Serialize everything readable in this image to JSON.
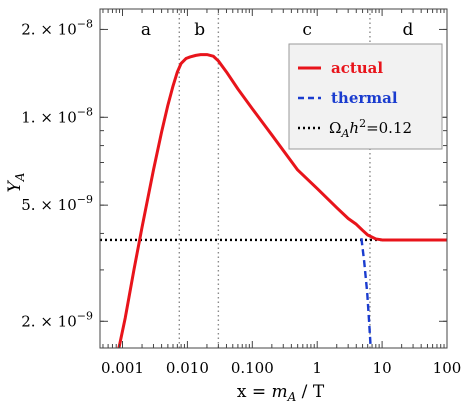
{
  "chart_data": {
    "type": "line",
    "title": "",
    "xlabel": "x = m_A / T",
    "ylabel": "Y_A",
    "x_scale": "log",
    "y_scale": "log",
    "xlim": [
      0.00045,
      100
    ],
    "ylim": [
      1.62e-09,
      2.35e-08
    ],
    "x_ticks": [
      {
        "value": 0.001,
        "label": "0.001"
      },
      {
        "value": 0.01,
        "label": "0.010"
      },
      {
        "value": 0.1,
        "label": "0.100"
      },
      {
        "value": 1,
        "label": "1"
      },
      {
        "value": 10,
        "label": "10"
      },
      {
        "value": 100,
        "label": "100"
      }
    ],
    "y_ticks": [
      {
        "value": 2e-09,
        "mantissa": "2.",
        "exponent": "−9"
      },
      {
        "value": 5e-09,
        "mantissa": "5.",
        "exponent": "−9"
      },
      {
        "value": 1e-08,
        "mantissa": "1.",
        "exponent": "−8"
      },
      {
        "value": 2e-08,
        "mantissa": "2.",
        "exponent": "−8"
      }
    ],
    "region_boundaries": [
      0.0075,
      0.03,
      6.5
    ],
    "regions": [
      {
        "label": "a",
        "x": 0.0023
      },
      {
        "label": "b",
        "x": 0.0155
      },
      {
        "label": "c",
        "x": 0.7
      },
      {
        "label": "d",
        "x": 25
      }
    ],
    "grid": false,
    "legend_position": "top-right",
    "series": [
      {
        "name": "actual",
        "color": "#e8141b",
        "style": "solid",
        "x": [
          0.00087,
          0.0011,
          0.0015,
          0.002,
          0.003,
          0.004,
          0.005,
          0.006,
          0.007,
          0.008,
          0.0095,
          0.011,
          0.0135,
          0.016,
          0.02,
          0.025,
          0.03,
          0.04,
          0.06,
          0.1,
          0.2,
          0.5,
          1,
          2,
          3,
          4,
          5,
          6,
          8,
          10,
          30,
          100
        ],
        "y": [
          1.6e-09,
          2.05e-09,
          3e-09,
          4.2e-09,
          6.6e-09,
          8.9e-09,
          1.1e-08,
          1.28e-08,
          1.43e-08,
          1.53e-08,
          1.59e-08,
          1.61e-08,
          1.63e-08,
          1.64e-08,
          1.64e-08,
          1.62e-08,
          1.56e-08,
          1.43e-08,
          1.25e-08,
          1.07e-08,
          8.7e-09,
          6.6e-09,
          5.7e-09,
          4.9e-09,
          4.5e-09,
          4.3e-09,
          4.1e-09,
          3.95e-09,
          3.83e-09,
          3.8e-09,
          3.8e-09,
          3.8e-09
        ]
      },
      {
        "name": "thermal",
        "color": "#1a3ccf",
        "style": "dashed",
        "x": [
          4.8,
          5.3,
          5.9,
          6.3,
          6.7
        ],
        "y": [
          3.85e-09,
          3.2e-09,
          2.5e-09,
          2e-09,
          1.6e-09
        ]
      },
      {
        "name": "Ω_A h²=0.12",
        "color": "#000000",
        "style": "dotted",
        "x": [
          0.00045,
          100
        ],
        "y": [
          3.8e-09,
          3.8e-09
        ]
      }
    ],
    "legend": [
      {
        "label": "actual",
        "color": "#e8141b",
        "style": "solid"
      },
      {
        "label": "thermal",
        "color": "#1a3ccf",
        "style": "dashed"
      },
      {
        "omega": "Ω",
        "sub": "A",
        "h": "h",
        "sup": "2",
        "value": "=0.12",
        "color": "#000000",
        "style": "dotted"
      }
    ]
  }
}
